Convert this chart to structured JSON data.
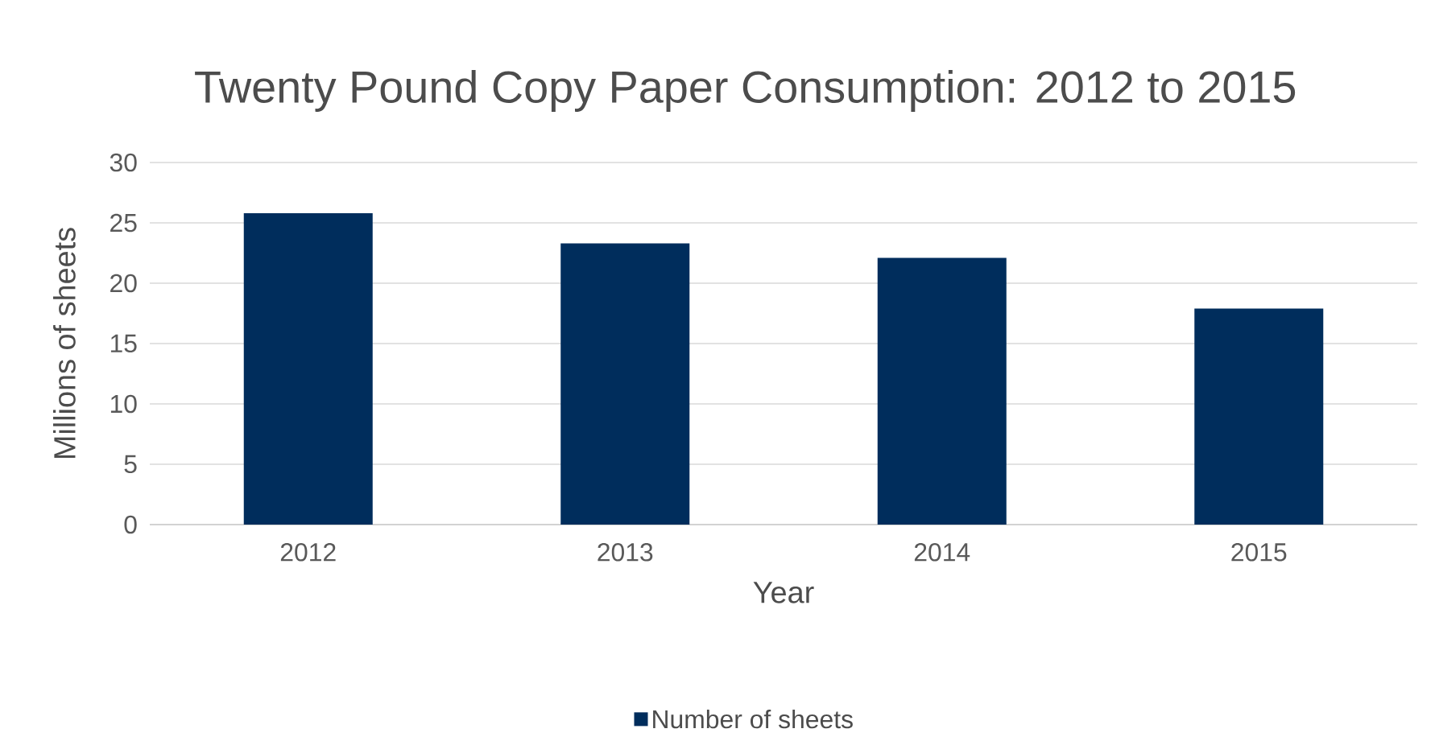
{
  "chart_data": {
    "type": "bar",
    "title": "Twenty Pound Copy Paper Consumption: 2012 to 2015",
    "xlabel": "Year",
    "ylabel": "Millions of sheets",
    "categories": [
      "2012",
      "2013",
      "2014",
      "2015"
    ],
    "series": [
      {
        "name": "Number of sheets",
        "color": "#002d5c",
        "values": [
          25.8,
          23.3,
          22.1,
          17.9
        ]
      }
    ],
    "ylim": [
      0,
      30
    ],
    "yticks": [
      0,
      5,
      10,
      15,
      20,
      25,
      30
    ],
    "grid": "y",
    "legend": "bottom"
  }
}
